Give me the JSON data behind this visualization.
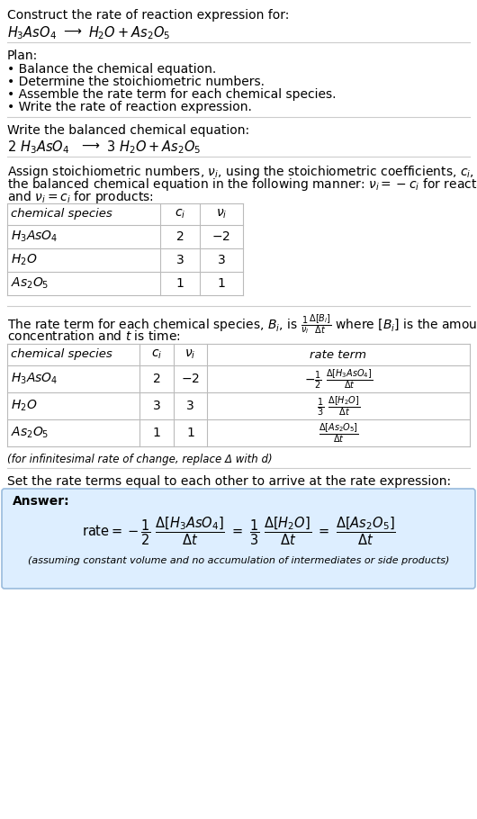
{
  "bg_color": "#ffffff",
  "text_color": "#000000",
  "table_border_color": "#bbbbbb",
  "answer_box_color": "#ddeeff",
  "answer_box_border": "#99bbdd",
  "title_line1": "Construct the rate of reaction expression for:",
  "plan_header": "Plan:",
  "plan_items": [
    "• Balance the chemical equation.",
    "• Determine the stoichiometric numbers.",
    "• Assemble the rate term for each chemical species.",
    "• Write the rate of reaction expression."
  ],
  "balanced_header": "Write the balanced chemical equation:",
  "stoich_para": "Assign stoichiometric numbers, νi, using the stoichiometric coefficients, ci, from the balanced chemical equation in the following manner: νi = −ci for reactants and νi = ci for products:",
  "rate_para1": "The rate term for each chemical species, Bi, is",
  "rate_para2": "where [Bi] is the amount",
  "rate_para3": "concentration and t is time:",
  "infinitesimal_note": "(for infinitesimal rate of change, replace Δ with d)",
  "set_equal_text": "Set the rate terms equal to each other to arrive at the rate expression:",
  "answer_label": "Answer:",
  "assuming_note": "(assuming constant volume and no accumulation of intermediates or side products)"
}
